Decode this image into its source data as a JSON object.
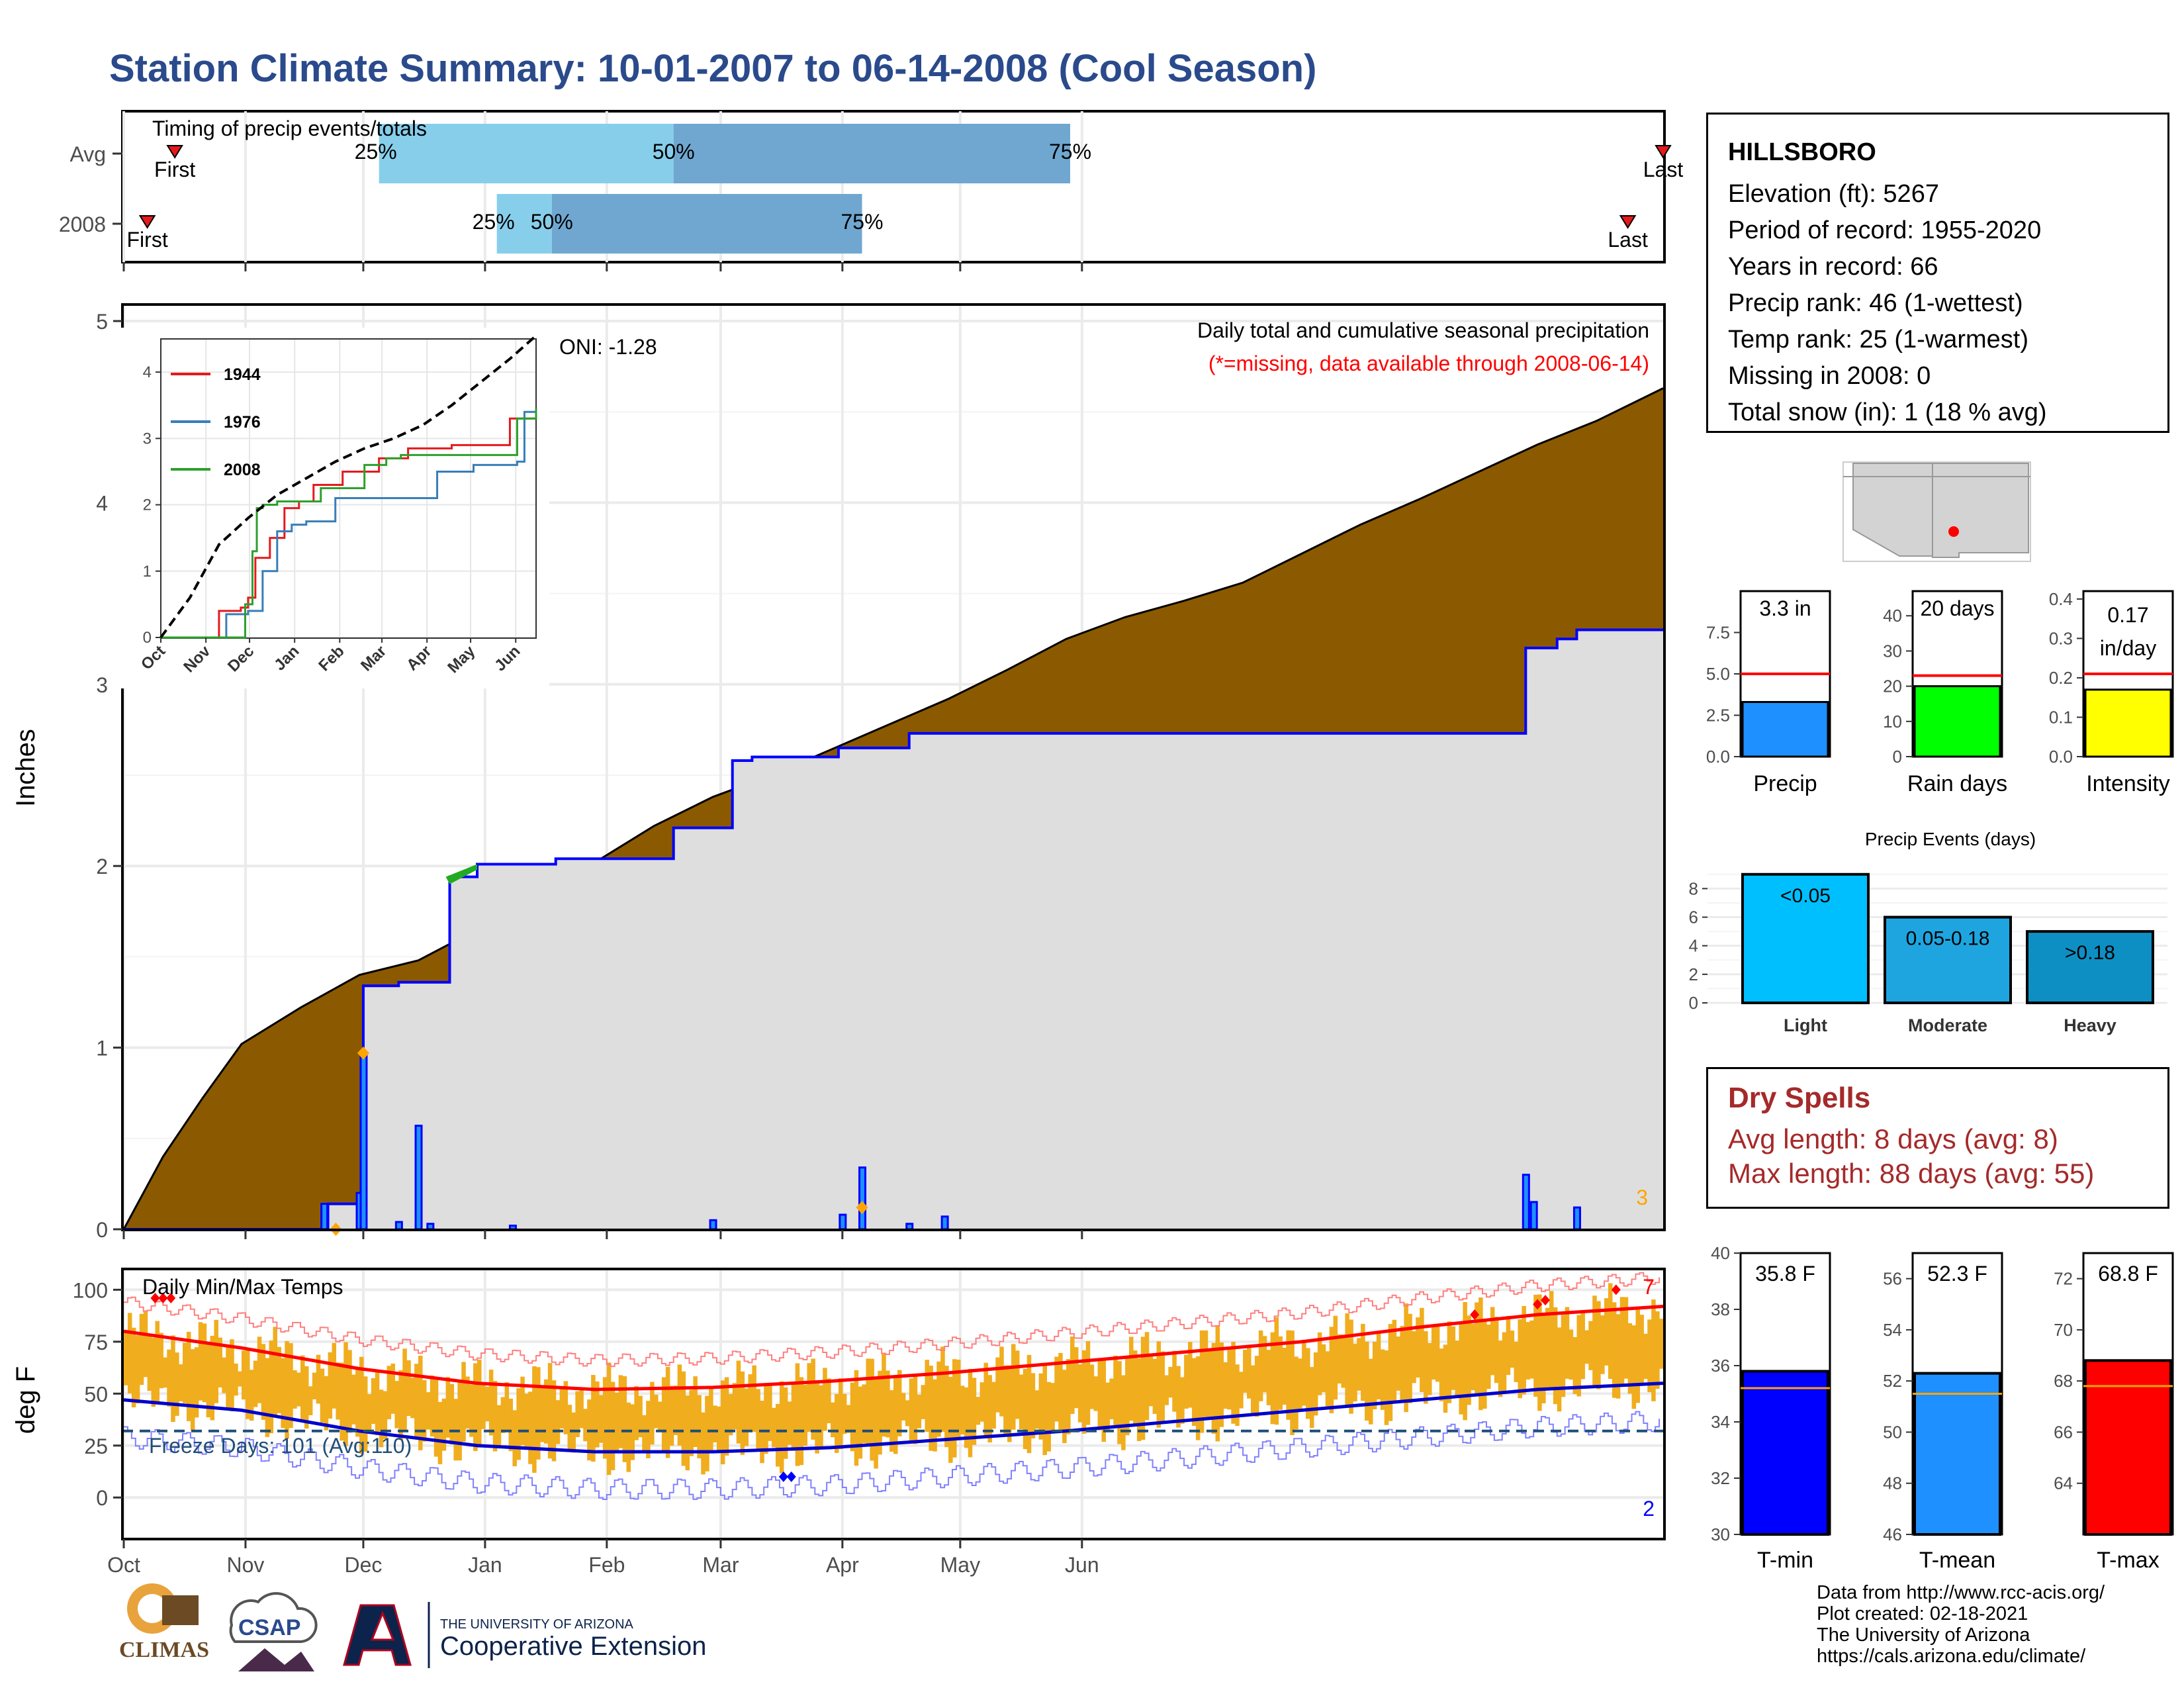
{
  "title": "Station Climate Summary: 10-01-2007 to 06-14-2008 (Cool Season)",
  "station": {
    "name": "HILLSBORO",
    "lines": [
      "Elevation (ft): 5267",
      "Period of record: 1955-2020",
      "Years in record: 66",
      "Precip rank: 46 (1-wettest)",
      "Temp rank: 25 (1-warmest)",
      "Missing in 2008: 0",
      "Total snow (in): 1 (18 % avg)"
    ]
  },
  "timing": {
    "label": "Timing of precip events/totals",
    "rows": [
      "Avg",
      "2008"
    ],
    "avg": {
      "first": 13,
      "p25": 65,
      "p50": 140,
      "p75": 241,
      "last": 392
    },
    "y2008": {
      "first": 6,
      "p25": 95,
      "p50": 109,
      "p75": 188,
      "last": 383
    },
    "first_label": "First",
    "last_label": "Last",
    "p25_label": "25%",
    "p50_label": "50%",
    "p75_label": "75%"
  },
  "main_annotation": {
    "title": "Daily total and cumulative seasonal precipitation",
    "subtitle": "(*=missing, data available through 2008-06-14)",
    "oni": "ONI: -1.28",
    "corner_count": "3",
    "ylabel": "Inches"
  },
  "temp_annotation": {
    "title": "Daily Min/Max Temps",
    "freeze": "Freeze Days: 101 (Avg:110)",
    "top_count": "7",
    "bottom_count": "2",
    "ylabel": "deg F"
  },
  "month_labels": [
    "Oct",
    "Nov",
    "Dec",
    "Jan",
    "Feb",
    "Mar",
    "Apr",
    "May",
    "Jun"
  ],
  "inset_month_labels": [
    "Oct",
    "Nov",
    "Dec",
    "Jan",
    "Feb",
    "Mar",
    "Apr",
    "May",
    "Jun"
  ],
  "dry_spells": {
    "title": "Dry Spells",
    "avg": "Avg length: 8 days (avg: 8)",
    "max": "Max length: 88 days (avg: 55)"
  },
  "credits": [
    "Data from http://www.rcc-acis.org/",
    "Plot created: 02-18-2021",
    "The University of Arizona",
    "https://cals.arizona.edu/climate/"
  ],
  "logos": {
    "climas": "CLIMAS",
    "csap": "CSAP",
    "ua_small": "THE UNIVERSITY OF ARIZONA",
    "ua_big": "Cooperative Extension"
  },
  "colors": {
    "title": "#2a4a8c",
    "cum_avg": "#8b5a00",
    "cum_year": "#0000ff",
    "bars_temp": "#f0ad1e",
    "dry": "#a52a2a"
  },
  "chart_data": [
    {
      "type": "area",
      "name": "main",
      "ylim": [
        0,
        5
      ],
      "yticks": [
        0,
        1,
        2,
        3,
        4,
        5
      ],
      "avg_cumulative": {
        "x": [
          0,
          10,
          20,
          30,
          45,
          60,
          75,
          90,
          105,
          120,
          135,
          150,
          165,
          180,
          195,
          210,
          225,
          240,
          255,
          270,
          285,
          300,
          315,
          330,
          345,
          360,
          375,
          392
        ],
        "y": [
          0,
          0.4,
          0.72,
          1.02,
          1.22,
          1.4,
          1.48,
          1.65,
          1.86,
          2.02,
          2.22,
          2.38,
          2.5,
          2.64,
          2.78,
          2.92,
          3.08,
          3.25,
          3.37,
          3.46,
          3.56,
          3.72,
          3.88,
          4.02,
          4.17,
          4.32,
          4.45,
          4.63
        ]
      },
      "year_cumulative": {
        "x": [
          0,
          51,
          52,
          60,
          61,
          70,
          75,
          82,
          83,
          90,
          110,
          140,
          155,
          160,
          182,
          200,
          230,
          300,
          355,
          357,
          365,
          370,
          392
        ],
        "y": [
          0,
          0,
          0.14,
          0.14,
          1.34,
          1.36,
          1.36,
          1.36,
          1.94,
          2.01,
          2.04,
          2.21,
          2.58,
          2.6,
          2.65,
          2.73,
          2.73,
          2.73,
          2.73,
          3.2,
          3.25,
          3.3,
          3.3
        ]
      },
      "daily_bars": [
        {
          "day": 51,
          "v": 0.14
        },
        {
          "day": 60,
          "v": 0.2
        },
        {
          "day": 61,
          "v": 0.97
        },
        {
          "day": 70,
          "v": 0.04
        },
        {
          "day": 75,
          "v": 0.57
        },
        {
          "day": 78,
          "v": 0.03
        },
        {
          "day": 99,
          "v": 0.02
        },
        {
          "day": 150,
          "v": 0.05
        },
        {
          "day": 183,
          "v": 0.08
        },
        {
          "day": 188,
          "v": 0.34
        },
        {
          "day": 200,
          "v": 0.03
        },
        {
          "day": 209,
          "v": 0.07
        },
        {
          "day": 357,
          "v": 0.3
        },
        {
          "day": 359,
          "v": 0.15
        },
        {
          "day": 370,
          "v": 0.12
        }
      ]
    },
    {
      "type": "line",
      "name": "inset",
      "ylim": [
        0,
        4.5
      ],
      "yticks": [
        0,
        1,
        2,
        3,
        4
      ],
      "series": [
        {
          "name": "1944",
          "color": "#e41a1c",
          "x": [
            0,
            20,
            40,
            55,
            60,
            65,
            75,
            85,
            95,
            105,
            125,
            150,
            170,
            200,
            220,
            235,
            240,
            255,
            258
          ],
          "y": [
            0,
            0,
            0.4,
            0.45,
            0.6,
            1.2,
            1.5,
            1.95,
            2.05,
            2.3,
            2.5,
            2.7,
            2.85,
            2.9,
            2.9,
            2.9,
            3.3,
            3.3,
            3.45
          ]
        },
        {
          "name": "1976",
          "color": "#377eb8",
          "x": [
            0,
            20,
            45,
            60,
            70,
            80,
            90,
            100,
            120,
            150,
            190,
            215,
            225,
            245,
            250,
            258
          ],
          "y": [
            0,
            0,
            0.35,
            0.4,
            1.0,
            1.6,
            1.7,
            1.75,
            2.1,
            2.1,
            2.5,
            2.6,
            2.6,
            2.65,
            3.4,
            3.4
          ]
        },
        {
          "name": "2008",
          "color": "#2ca02c",
          "x": [
            0,
            55,
            58,
            63,
            66,
            70,
            80,
            90,
            110,
            140,
            155,
            165,
            200,
            240,
            245,
            258
          ],
          "y": [
            0,
            0,
            0.5,
            1.3,
            1.95,
            2.0,
            2.05,
            2.05,
            2.25,
            2.6,
            2.7,
            2.75,
            2.75,
            2.75,
            3.3,
            3.45
          ]
        }
      ],
      "avg": {
        "x": [
          0,
          20,
          40,
          60,
          80,
          100,
          120,
          140,
          160,
          180,
          200,
          220,
          240,
          258
        ],
        "y": [
          0,
          0.6,
          1.4,
          1.8,
          2.15,
          2.4,
          2.65,
          2.85,
          3.0,
          3.2,
          3.5,
          3.85,
          4.2,
          4.55
        ]
      }
    },
    {
      "type": "bar",
      "name": "annual_summary",
      "panels": [
        {
          "label": "Precip",
          "value": 3.3,
          "normal": 5.0,
          "ylim": [
            0,
            10
          ],
          "yticks": [
            0.0,
            2.5,
            5.0,
            7.5
          ],
          "text": "3.3 in",
          "color": "#1e90ff"
        },
        {
          "label": "Rain days",
          "value": 20,
          "normal": 23,
          "ylim": [
            0,
            47
          ],
          "yticks": [
            0,
            10,
            20,
            30,
            40
          ],
          "text": "20 days",
          "color": "#00ff00"
        },
        {
          "label": "Intensity",
          "value": 0.17,
          "normal": 0.21,
          "ylim": [
            0,
            0.42
          ],
          "yticks": [
            0.0,
            0.1,
            0.2,
            0.3,
            0.4
          ],
          "text": "0.17 in/day",
          "color": "#ffff00"
        }
      ]
    },
    {
      "type": "bar",
      "name": "precip_events",
      "title": "Precip Events (days)",
      "categories": [
        "Light",
        "Moderate",
        "Heavy"
      ],
      "bar_labels": [
        "<0.05",
        "0.05-0.18",
        ">0.18"
      ],
      "values": [
        9,
        6,
        5
      ],
      "ylim": [
        0,
        9.5
      ],
      "yticks": [
        0,
        2,
        4,
        6,
        8
      ]
    },
    {
      "type": "bar",
      "name": "temp_summary",
      "panels": [
        {
          "label": "T-min",
          "value": 35.8,
          "normal": 35.2,
          "ylim": [
            30,
            40
          ],
          "yticks": [
            30,
            32,
            34,
            36,
            38,
            40
          ],
          "text": "35.8 F",
          "color": "#0000ff"
        },
        {
          "label": "T-mean",
          "value": 52.3,
          "normal": 51.5,
          "ylim": [
            46,
            57
          ],
          "yticks": [
            46,
            48,
            50,
            52,
            54,
            56
          ],
          "text": "52.3 F",
          "color": "#1e90ff"
        },
        {
          "label": "T-max",
          "value": 68.8,
          "normal": 67.8,
          "ylim": [
            62,
            73
          ],
          "yticks": [
            64,
            66,
            68,
            70,
            72
          ],
          "text": "68.8 F",
          "color": "#ff0000"
        }
      ]
    },
    {
      "type": "bar",
      "name": "temps",
      "ylim": [
        -20,
        110
      ],
      "yticks": [
        0,
        25,
        50,
        75,
        100
      ],
      "freeze_line": 32,
      "tmax_normal": {
        "x": [
          0,
          30,
          60,
          90,
          120,
          150,
          180,
          210,
          240,
          270,
          300,
          330,
          360,
          392
        ],
        "y": [
          80,
          72,
          62,
          55,
          52,
          53,
          56,
          60,
          65,
          70,
          75,
          82,
          88,
          92
        ]
      },
      "tmin_normal": {
        "x": [
          0,
          30,
          60,
          90,
          120,
          150,
          180,
          210,
          240,
          270,
          300,
          330,
          360,
          392
        ],
        "y": [
          47,
          42,
          32,
          25,
          22,
          22,
          24,
          28,
          32,
          37,
          42,
          47,
          52,
          55
        ]
      }
    }
  ]
}
